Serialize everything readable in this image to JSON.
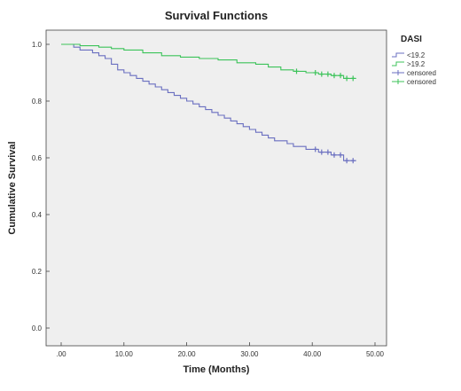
{
  "chart_data": {
    "type": "line",
    "subtype": "kaplan-meier step",
    "title": "Survival Functions",
    "xlabel": "Time (Months)",
    "ylabel": "Cumulative Survival",
    "xlim": [
      0,
      50
    ],
    "ylim": [
      0,
      1.0
    ],
    "x_ticks": [
      ".00",
      "10.00",
      "20.00",
      "30.00",
      "40.00",
      "50.00"
    ],
    "y_ticks": [
      "0.0",
      "0.2",
      "0.4",
      "0.6",
      "0.8",
      "1.0"
    ],
    "grid": false,
    "legend": {
      "title": "DASI",
      "placement": "right",
      "entries": [
        "<19.2",
        ">19.2",
        "censored",
        "censored"
      ]
    },
    "colors": {
      "low_dasi": "#6a6fc0",
      "high_dasi": "#3cc35a",
      "plot_background": "#efefef"
    },
    "series": [
      {
        "name": "<19.2",
        "color": "#6a6fc0",
        "x": [
          0,
          2,
          3,
          5,
          6,
          7,
          8,
          9,
          10,
          11,
          12,
          13,
          14,
          15,
          16,
          17,
          18,
          19,
          20,
          21,
          22,
          23,
          24,
          25,
          26,
          27,
          28,
          29,
          30,
          31,
          32,
          33,
          34,
          35,
          36,
          37,
          38,
          39,
          40,
          41,
          42,
          43,
          44,
          45,
          46,
          47
        ],
        "y": [
          1.0,
          0.99,
          0.98,
          0.97,
          0.96,
          0.95,
          0.93,
          0.91,
          0.9,
          0.89,
          0.88,
          0.87,
          0.86,
          0.85,
          0.84,
          0.83,
          0.82,
          0.81,
          0.8,
          0.79,
          0.78,
          0.77,
          0.76,
          0.75,
          0.74,
          0.73,
          0.72,
          0.71,
          0.7,
          0.69,
          0.68,
          0.67,
          0.66,
          0.66,
          0.65,
          0.64,
          0.64,
          0.63,
          0.63,
          0.62,
          0.62,
          0.61,
          0.61,
          0.59,
          0.59,
          0.59
        ],
        "censored_x": [
          40.5,
          41.5,
          42.5,
          43.5,
          44.5,
          45.5,
          46.5
        ]
      },
      {
        "name": ">19.2",
        "color": "#3cc35a",
        "x": [
          0,
          3,
          6,
          8,
          10,
          13,
          16,
          19,
          22,
          25,
          28,
          31,
          33,
          35,
          37,
          39,
          41,
          43,
          45,
          47
        ],
        "y": [
          1.0,
          0.995,
          0.99,
          0.985,
          0.98,
          0.97,
          0.96,
          0.955,
          0.95,
          0.945,
          0.935,
          0.93,
          0.92,
          0.91,
          0.905,
          0.9,
          0.895,
          0.89,
          0.88,
          0.88
        ],
        "censored_x": [
          37.5,
          40.5,
          41.5,
          42.5,
          43.5,
          44.5,
          45.5,
          46.5
        ]
      }
    ]
  }
}
